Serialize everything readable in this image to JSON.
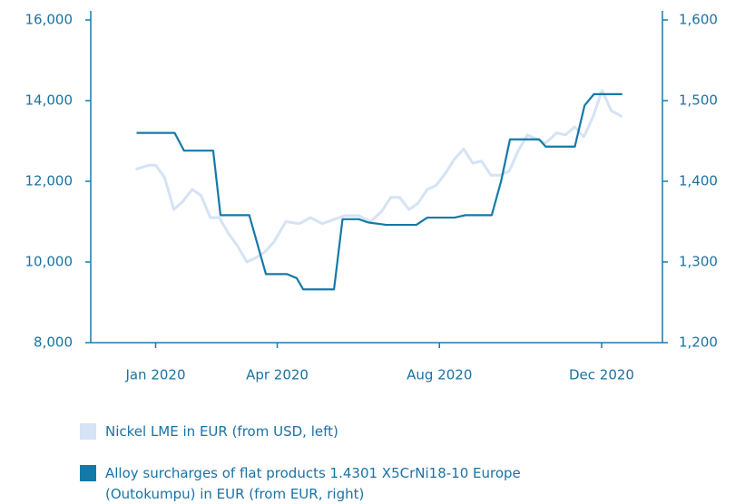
{
  "chart_data": {
    "type": "line",
    "xlim": [
      -1.6,
      12.5
    ],
    "xticks": [
      {
        "value": 0,
        "label": "Jan 2020"
      },
      {
        "value": 3,
        "label": "Apr 2020"
      },
      {
        "value": 7,
        "label": "Aug 2020"
      },
      {
        "value": 11,
        "label": "Dec 2020"
      }
    ],
    "ylim": [
      8000,
      16000
    ],
    "yticks": [
      {
        "value": 8000,
        "label": "8,000"
      },
      {
        "value": 10000,
        "label": "10,000"
      },
      {
        "value": 12000,
        "label": "12,000"
      },
      {
        "value": 14000,
        "label": "14,000"
      },
      {
        "value": 16000,
        "label": "16,000"
      }
    ],
    "y2lim": [
      1200,
      1600
    ],
    "y2ticks": [
      {
        "value": 1200,
        "label": "1,200"
      },
      {
        "value": 1300,
        "label": "1,300"
      },
      {
        "value": 1400,
        "label": "1,400"
      },
      {
        "value": 1500,
        "label": "1,500"
      },
      {
        "value": 1600,
        "label": "1,600"
      }
    ],
    "series": [
      {
        "name": "Nickel LME in EUR (from USD, left)",
        "color": "#d5e3f5",
        "axis": "y",
        "x": [
          -0.49,
          -0.16,
          0,
          0.22,
          0.45,
          0.67,
          0.9,
          1.12,
          1.35,
          1.57,
          1.8,
          2.02,
          2.25,
          2.47,
          2.7,
          2.92,
          3.21,
          3.55,
          3.82,
          4.11,
          4.67,
          5.01,
          5.3,
          5.57,
          5.8,
          6.02,
          6.25,
          6.47,
          6.7,
          6.92,
          7.15,
          7.37,
          7.6,
          7.82,
          8.04,
          8.27,
          8.49,
          8.72,
          8.94,
          9.17,
          9.39,
          9.62,
          9.89,
          10.11,
          10.34,
          10.56,
          10.79,
          11.01,
          11.24,
          11.51
        ],
        "values": [
          12300,
          12400,
          12400,
          12100,
          11300,
          11500,
          11800,
          11650,
          11100,
          11100,
          10700,
          10400,
          10000,
          10100,
          10250,
          10500,
          11000,
          10950,
          11100,
          10950,
          11150,
          11150,
          11000,
          11250,
          11600,
          11600,
          11300,
          11450,
          11800,
          11900,
          12200,
          12550,
          12800,
          12450,
          12500,
          12150,
          12150,
          12250,
          12750,
          13150,
          13050,
          12950,
          13200,
          13150,
          13350,
          13100,
          13600,
          14250,
          13750,
          13600
        ]
      },
      {
        "name": "Alloy surcharges of flat products 1.4301 X5CrNi18-10 Europe (Outokumpu) in EUR (from EUR, right)",
        "color": "#1479a8",
        "axis": "y2",
        "x": [
          -0.47,
          0.47,
          0.7,
          1.42,
          1.6,
          2.31,
          2.72,
          3.24,
          3.48,
          3.64,
          4.4,
          4.61,
          5.01,
          5.24,
          5.69,
          6.43,
          6.7,
          7.37,
          7.64,
          8.29,
          8.52,
          8.74,
          9.46,
          9.62,
          10.34,
          10.58,
          10.81,
          11.51
        ],
        "values": [
          1460,
          1460,
          1438,
          1438,
          1358,
          1358,
          1285,
          1285,
          1280,
          1266,
          1266,
          1353,
          1353,
          1349,
          1346,
          1346,
          1355,
          1355,
          1358,
          1358,
          1400,
          1452,
          1452,
          1443,
          1443,
          1494,
          1508,
          1508
        ]
      }
    ]
  }
}
